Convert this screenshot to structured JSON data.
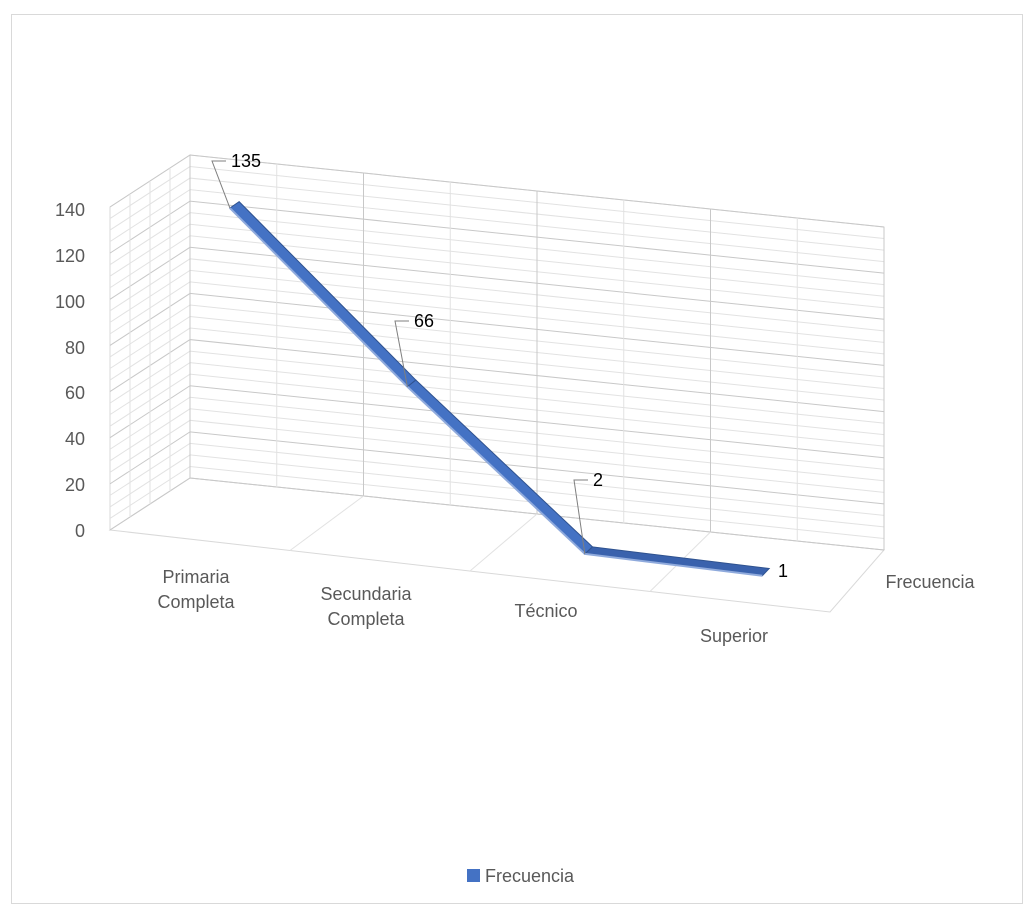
{
  "chart_data": {
    "type": "line",
    "title": "",
    "xlabel": "",
    "ylabel": "",
    "ylim": [
      0,
      140
    ],
    "y_ticks": [
      0,
      20,
      40,
      60,
      80,
      100,
      120,
      140
    ],
    "y_tick_labels": [
      "0",
      "20",
      "40",
      "60",
      "80",
      "100",
      "120",
      "140"
    ],
    "categories": [
      "Primaria Completa",
      "Secundaria Completa",
      "Técnico",
      "Superior"
    ],
    "category_label_lines": [
      [
        "Primaria",
        "Completa"
      ],
      [
        "Secundaria",
        "Completa"
      ],
      [
        "Técnico"
      ],
      [
        "Superior"
      ]
    ],
    "depth_label": "Frecuencia",
    "series": [
      {
        "name": "Frecuencia",
        "values": [
          135,
          66,
          2,
          1
        ],
        "data_labels": [
          "135",
          "66",
          "2",
          "1"
        ],
        "color": "#4472c4"
      }
    ],
    "legend": {
      "position": "bottom",
      "entries": [
        "Frecuencia"
      ]
    },
    "grid": true,
    "style": "3d-line"
  }
}
